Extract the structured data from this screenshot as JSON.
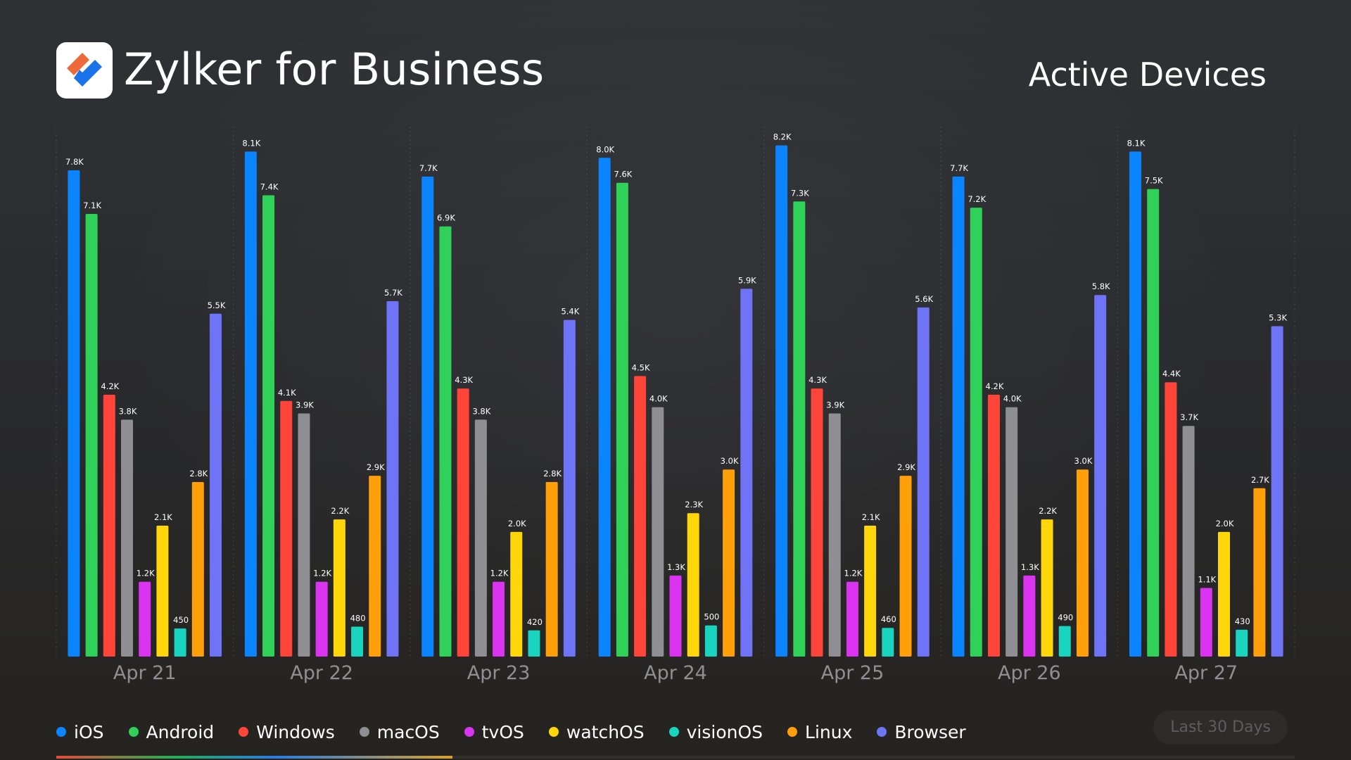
{
  "header": {
    "brand": "Zylker for Business",
    "title": "Active Devices"
  },
  "range": {
    "label": "Last 30 Days"
  },
  "progress": {
    "fraction": 0.32
  },
  "colors": {
    "iOS": "#0a84ff",
    "Android": "#30d158",
    "Windows": "#ff453a",
    "macOS": "#8e8e93",
    "tvOS": "#da34f0",
    "watchOS": "#ffd60a",
    "visionOS": "#19d4be",
    "Linux": "#ff9f0a",
    "Browser": "#6f73f5",
    "logo_orange": "#ef6a3b",
    "logo_blue": "#1a73e8"
  },
  "chart_data": {
    "type": "bar",
    "title": "Active Devices",
    "xlabel": "",
    "ylabel": "",
    "ylim": [
      0,
      8500
    ],
    "grid": false,
    "legend_position": "bottom-left",
    "categories": [
      "Apr 21",
      "Apr 22",
      "Apr 23",
      "Apr 24",
      "Apr 25",
      "Apr 26",
      "Apr 27"
    ],
    "series": [
      {
        "name": "iOS",
        "values": [
          7800,
          8100,
          7700,
          8000,
          8200,
          7700,
          8100
        ],
        "labels": [
          "7.8K",
          "8.1K",
          "7.7K",
          "8.0K",
          "8.2K",
          "7.7K",
          "8.1K"
        ]
      },
      {
        "name": "Android",
        "values": [
          7100,
          7400,
          6900,
          7600,
          7300,
          7200,
          7500
        ],
        "labels": [
          "7.1K",
          "7.4K",
          "6.9K",
          "7.6K",
          "7.3K",
          "7.2K",
          "7.5K"
        ]
      },
      {
        "name": "Windows",
        "values": [
          4200,
          4100,
          4300,
          4500,
          4300,
          4200,
          4400
        ],
        "labels": [
          "4.2K",
          "4.1K",
          "4.3K",
          "4.5K",
          "4.3K",
          "4.2K",
          "4.4K"
        ]
      },
      {
        "name": "macOS",
        "values": [
          3800,
          3900,
          3800,
          4000,
          3900,
          4000,
          3700
        ],
        "labels": [
          "3.8K",
          "3.9K",
          "3.8K",
          "4.0K",
          "3.9K",
          "4.0K",
          "3.7K"
        ]
      },
      {
        "name": "tvOS",
        "values": [
          1200,
          1200,
          1200,
          1300,
          1200,
          1300,
          1100
        ],
        "labels": [
          "1.2K",
          "1.2K",
          "1.2K",
          "1.3K",
          "1.2K",
          "1.3K",
          "1.1K"
        ]
      },
      {
        "name": "watchOS",
        "values": [
          2100,
          2200,
          2000,
          2300,
          2100,
          2200,
          2000
        ],
        "labels": [
          "2.1K",
          "2.2K",
          "2.0K",
          "2.3K",
          "2.1K",
          "2.2K",
          "2.0K"
        ]
      },
      {
        "name": "visionOS",
        "values": [
          450,
          480,
          420,
          500,
          460,
          490,
          430
        ],
        "labels": [
          "450",
          "480",
          "420",
          "500",
          "460",
          "490",
          "430"
        ]
      },
      {
        "name": "Linux",
        "values": [
          2800,
          2900,
          2800,
          3000,
          2900,
          3000,
          2700
        ],
        "labels": [
          "2.8K",
          "2.9K",
          "2.8K",
          "3.0K",
          "2.9K",
          "3.0K",
          "2.7K"
        ]
      },
      {
        "name": "Browser",
        "values": [
          5500,
          5700,
          5400,
          5900,
          5600,
          5800,
          5300
        ],
        "labels": [
          "5.5K",
          "5.7K",
          "5.4K",
          "5.9K",
          "5.6K",
          "5.8K",
          "5.3K"
        ]
      }
    ]
  }
}
